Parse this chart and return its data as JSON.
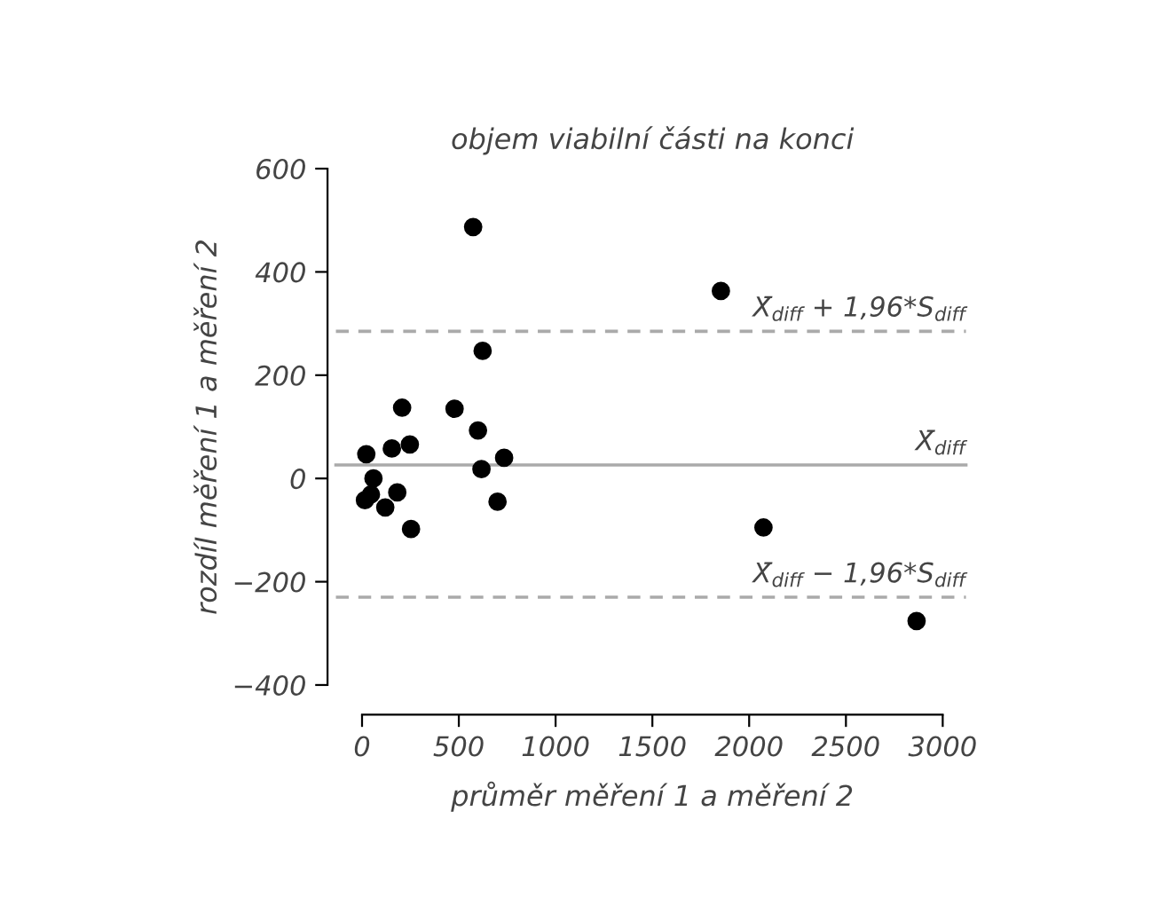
{
  "chart_data": {
    "type": "scatter",
    "title": "objem viabilní části na konci",
    "xlabel": "průměr měření 1 a měření 2",
    "ylabel": "rozdíl měření 1 a měření 2",
    "x": [
      574,
      623,
      207,
      478,
      599,
      247,
      154,
      22,
      734,
      617,
      59,
      46,
      15,
      182,
      120,
      700,
      253,
      1854,
      2074,
      2865
    ],
    "series": [
      {
        "color": "#000000",
        "values": [
          487,
          247,
          137,
          135,
          93,
          66,
          58,
          47,
          40,
          18,
          0,
          -31,
          -42,
          -27,
          -56,
          -45,
          -98,
          363,
          -95,
          -276
        ]
      }
    ],
    "xlim": [
      0,
      3000
    ],
    "ylim": [
      -400,
      600
    ],
    "xticks": [
      0,
      500,
      1000,
      1500,
      2000,
      2500,
      3000
    ],
    "yticks": [
      {
        "value": -400,
        "label": "−400"
      },
      {
        "value": -200,
        "label": "−200"
      },
      0,
      200,
      400,
      600
    ],
    "ref_lines": [
      {
        "axis": "y",
        "value": 285,
        "label": "X̄$_{diff}$ + 1,96*S$_{diff}$",
        "color": "#aaaaaa",
        "line_style": "dashed"
      },
      {
        "axis": "y",
        "value": 26,
        "label": "X̄$_{diff}$",
        "color": "#aaaaaa",
        "line_style": "solid"
      },
      {
        "axis": "y",
        "value": -230,
        "label": "X̄$_{diff}$ − 1,96*S$_{diff}$",
        "color": "#aaaaaa",
        "line_style": "dashed"
      }
    ],
    "marker": "circle",
    "grid": false,
    "legend": false
  }
}
